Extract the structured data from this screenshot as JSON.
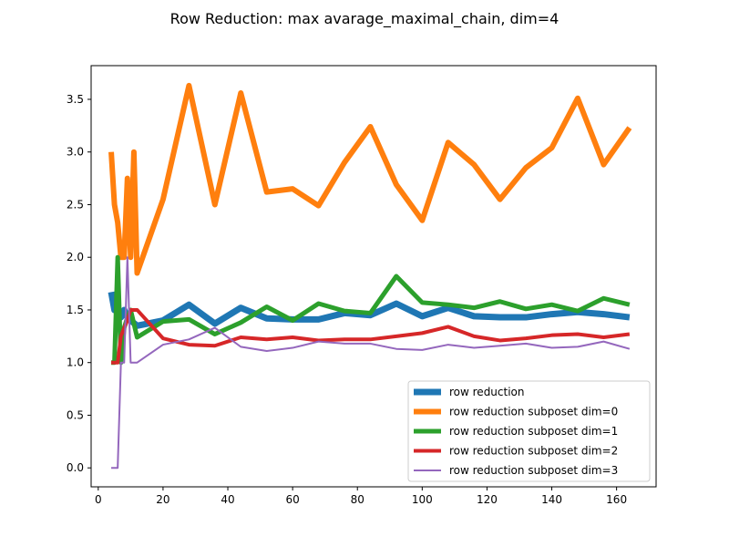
{
  "chart_data": {
    "type": "line",
    "title": "Row Reduction: max avarage_maximal_chain, dim=4",
    "xlabel": "",
    "ylabel": "",
    "xlim": [
      -2.2,
      172.2
    ],
    "ylim": [
      -0.18,
      3.82
    ],
    "xticks": [
      0,
      20,
      40,
      60,
      80,
      100,
      120,
      140,
      160
    ],
    "yticks": [
      0.0,
      0.5,
      1.0,
      1.5,
      2.0,
      2.5,
      3.0,
      3.5
    ],
    "xtick_labels": [
      "0",
      "20",
      "40",
      "60",
      "80",
      "100",
      "120",
      "140",
      "160"
    ],
    "ytick_labels": [
      "0.0",
      "0.5",
      "1.0",
      "1.5",
      "2.0",
      "2.5",
      "3.0",
      "3.5"
    ],
    "grid": false,
    "legend_position": "lower-right",
    "series": [
      {
        "name": "row reduction",
        "color": "#1f77b4",
        "linewidth": 7,
        "x": [
          4,
          5,
          6,
          7,
          8,
          9,
          10,
          12,
          20,
          28,
          36,
          44,
          52,
          60,
          68,
          76,
          84,
          92,
          100,
          108,
          116,
          124,
          132,
          140,
          148,
          156,
          164
        ],
        "y": [
          1.67,
          1.5,
          1.5,
          1.43,
          1.5,
          1.43,
          1.4,
          1.35,
          1.4,
          1.55,
          1.37,
          1.52,
          1.42,
          1.41,
          1.41,
          1.47,
          1.45,
          1.56,
          1.44,
          1.52,
          1.44,
          1.43,
          1.43,
          1.46,
          1.48,
          1.46,
          1.43
        ]
      },
      {
        "name": "row reduction subposet dim=0",
        "color": "#ff7f0e",
        "linewidth": 6,
        "x": [
          4,
          5,
          6,
          7,
          8,
          9,
          10,
          11,
          12,
          20,
          28,
          36,
          44,
          52,
          60,
          68,
          76,
          84,
          92,
          100,
          108,
          116,
          124,
          132,
          140,
          148,
          156,
          164
        ],
        "y": [
          3.0,
          2.5,
          2.33,
          2.0,
          2.0,
          2.75,
          2.0,
          3.0,
          1.85,
          2.55,
          3.63,
          2.5,
          3.56,
          2.62,
          2.65,
          2.49,
          2.9,
          3.24,
          2.69,
          2.35,
          3.09,
          2.88,
          2.55,
          2.85,
          3.04,
          3.51,
          2.88,
          3.23
        ]
      },
      {
        "name": "row reduction subposet dim=1",
        "color": "#2ca02c",
        "linewidth": 5,
        "x": [
          4,
          5,
          6,
          7,
          8,
          9,
          10,
          12,
          20,
          28,
          36,
          44,
          52,
          60,
          68,
          76,
          84,
          92,
          100,
          108,
          116,
          124,
          132,
          140,
          148,
          156,
          164
        ],
        "y": [
          1.0,
          1.0,
          2.0,
          1.0,
          1.33,
          1.43,
          1.5,
          1.24,
          1.39,
          1.41,
          1.27,
          1.38,
          1.53,
          1.4,
          1.56,
          1.49,
          1.47,
          1.82,
          1.57,
          1.55,
          1.52,
          1.58,
          1.51,
          1.55,
          1.49,
          1.61,
          1.55
        ]
      },
      {
        "name": "row reduction subposet dim=2",
        "color": "#d62728",
        "linewidth": 4,
        "x": [
          4,
          5,
          6,
          7,
          8,
          9,
          10,
          12,
          20,
          28,
          36,
          44,
          52,
          60,
          68,
          76,
          84,
          92,
          100,
          108,
          116,
          124,
          132,
          140,
          148,
          156,
          164
        ],
        "y": [
          1.0,
          1.0,
          1.0,
          1.25,
          1.33,
          1.4,
          1.5,
          1.5,
          1.23,
          1.17,
          1.16,
          1.24,
          1.22,
          1.24,
          1.21,
          1.22,
          1.22,
          1.25,
          1.28,
          1.34,
          1.25,
          1.21,
          1.23,
          1.26,
          1.27,
          1.24,
          1.27
        ]
      },
      {
        "name": "row reduction subposet dim=3",
        "color": "#9467bd",
        "linewidth": 2,
        "x": [
          4,
          5,
          6,
          7,
          8,
          9,
          10,
          12,
          20,
          28,
          36,
          44,
          52,
          60,
          68,
          76,
          84,
          92,
          100,
          108,
          116,
          124,
          132,
          140,
          148,
          156,
          164
        ],
        "y": [
          0.0,
          0.0,
          0.0,
          1.0,
          1.0,
          2.0,
          1.0,
          1.0,
          1.17,
          1.22,
          1.33,
          1.15,
          1.11,
          1.14,
          1.2,
          1.18,
          1.18,
          1.13,
          1.12,
          1.17,
          1.14,
          1.16,
          1.18,
          1.14,
          1.15,
          1.2,
          1.13
        ]
      }
    ]
  }
}
